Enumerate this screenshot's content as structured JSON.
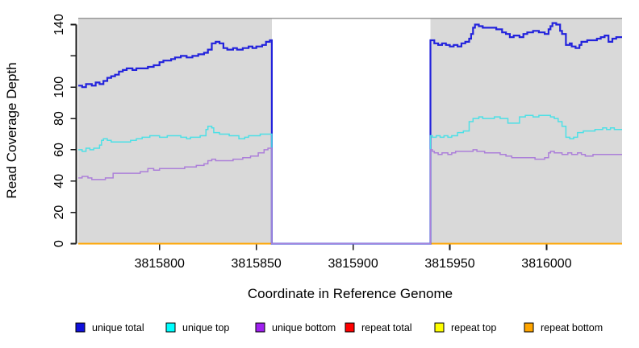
{
  "chart_data": {
    "type": "line",
    "title": "",
    "xlabel": "Coordinate in Reference Genome",
    "ylabel": "Read Coverage Depth",
    "xlim": [
      3815758,
      3816039
    ],
    "ylim": [
      0,
      144.65
    ],
    "grid": false,
    "legend_position": "bottom",
    "x_ticks": [
      {
        "v": 3815800,
        "label": "3815800"
      },
      {
        "v": 3815850,
        "label": "3815850"
      },
      {
        "v": 3815900,
        "label": "3815900"
      },
      {
        "v": 3815950,
        "label": "3815950"
      },
      {
        "v": 3816000,
        "label": "3816000"
      }
    ],
    "y_ticks": [
      {
        "v": 0,
        "label": "0"
      },
      {
        "v": 20,
        "label": "20"
      },
      {
        "v": 40,
        "label": "40"
      },
      {
        "v": 60,
        "label": "60"
      },
      {
        "v": 80,
        "label": "80"
      },
      {
        "v": 100,
        "label": "100"
      },
      {
        "v": 120,
        "label": ""
      },
      {
        "v": 140,
        "label": "140"
      }
    ],
    "panel_color": "#D9D9D9",
    "panel_top_line_color": "#999999",
    "gap_region": {
      "x0": 3815858,
      "x1": 3815940,
      "color": "#FFFFFF"
    },
    "shaded_regions": [
      {
        "x0": 3815758,
        "x1": 3815858
      },
      {
        "x0": 3815940,
        "x1": 3816039
      }
    ],
    "series": [
      {
        "name": "repeat total",
        "color": "#FF0000",
        "width": 1.5,
        "segments": [
          [
            [
              3815758,
              0
            ],
            [
              3815858,
              0
            ]
          ],
          [
            [
              3815940,
              0
            ],
            [
              3816039,
              0
            ]
          ]
        ]
      },
      {
        "name": "repeat top",
        "color": "#FFFF00",
        "width": 1.5,
        "segments": [
          [
            [
              3815758,
              0
            ],
            [
              3815858,
              0
            ]
          ],
          [
            [
              3815940,
              0
            ],
            [
              3816039,
              0
            ]
          ]
        ]
      },
      {
        "name": "repeat bottom",
        "color": "#FFA500",
        "width": 2,
        "segments": [
          [
            [
              3815758,
              0
            ],
            [
              3815858,
              0
            ]
          ],
          [
            [
              3815940,
              0
            ],
            [
              3816039,
              0
            ]
          ]
        ]
      },
      {
        "name": "unique total",
        "color": "#2222DC",
        "width": 2.2,
        "segments": [
          [
            [
              3815758,
              101
            ],
            [
              3815760,
              100
            ],
            [
              3815762,
              102
            ],
            [
              3815765,
              101
            ],
            [
              3815767,
              103
            ],
            [
              3815769,
              102
            ],
            [
              3815771,
              104
            ],
            [
              3815773,
              106
            ],
            [
              3815775,
              107
            ],
            [
              3815777,
              108
            ],
            [
              3815779,
              110
            ],
            [
              3815781,
              111
            ],
            [
              3815783,
              112
            ],
            [
              3815786,
              111
            ],
            [
              3815788,
              112
            ],
            [
              3815794,
              113
            ],
            [
              3815797,
              114
            ],
            [
              3815800,
              116
            ],
            [
              3815802,
              117
            ],
            [
              3815806,
              118
            ],
            [
              3815808,
              119
            ],
            [
              3815811,
              120
            ],
            [
              3815814,
              119
            ],
            [
              3815817,
              120
            ],
            [
              3815820,
              121
            ],
            [
              3815823,
              122
            ],
            [
              3815825,
              124
            ],
            [
              3815827,
              128
            ],
            [
              3815829,
              129
            ],
            [
              3815831,
              128
            ],
            [
              3815833,
              125
            ],
            [
              3815835,
              124
            ],
            [
              3815838,
              125
            ],
            [
              3815840,
              124
            ],
            [
              3815843,
              125
            ],
            [
              3815846,
              126
            ],
            [
              3815848,
              125
            ],
            [
              3815850,
              126
            ],
            [
              3815853,
              127
            ],
            [
              3815855,
              129
            ],
            [
              3815857,
              130
            ],
            [
              3815858,
              0
            ],
            [
              3815940,
              130
            ],
            [
              3815942,
              128
            ],
            [
              3815944,
              127
            ],
            [
              3815946,
              128
            ],
            [
              3815948,
              127
            ],
            [
              3815950,
              126
            ],
            [
              3815952,
              127
            ],
            [
              3815954,
              126
            ],
            [
              3815956,
              128
            ],
            [
              3815958,
              129
            ],
            [
              3815960,
              131
            ],
            [
              3815961,
              134
            ],
            [
              3815962,
              138
            ],
            [
              3815963,
              140
            ],
            [
              3815965,
              139
            ],
            [
              3815967,
              138
            ],
            [
              3815974,
              137
            ],
            [
              3815977,
              135
            ],
            [
              3815979,
              134
            ],
            [
              3815981,
              132
            ],
            [
              3815983,
              133
            ],
            [
              3815986,
              132
            ],
            [
              3815988,
              134
            ],
            [
              3815990,
              135
            ],
            [
              3815993,
              136
            ],
            [
              3815996,
              135
            ],
            [
              3815999,
              134
            ],
            [
              3816001,
              137
            ],
            [
              3816002,
              139
            ],
            [
              3816003,
              141
            ],
            [
              3816005,
              140
            ],
            [
              3816007,
              136
            ],
            [
              3816008,
              134
            ],
            [
              3816010,
              127
            ],
            [
              3816012,
              128
            ],
            [
              3816013,
              126
            ],
            [
              3816015,
              125
            ],
            [
              3816017,
              127
            ],
            [
              3816018,
              129
            ],
            [
              3816021,
              130
            ],
            [
              3816024,
              130
            ],
            [
              3816026,
              131
            ],
            [
              3816028,
              132
            ],
            [
              3816030,
              133
            ],
            [
              3816032,
              129
            ],
            [
              3816034,
              131
            ],
            [
              3816036,
              132
            ],
            [
              3816039,
              132
            ]
          ]
        ]
      },
      {
        "name": "unique top",
        "color": "#4DE0E6",
        "width": 1.5,
        "segments": [
          [
            [
              3815758,
              60
            ],
            [
              3815760,
              59
            ],
            [
              3815762,
              61
            ],
            [
              3815764,
              60
            ],
            [
              3815766,
              61
            ],
            [
              3815769,
              63
            ],
            [
              3815770,
              66
            ],
            [
              3815771,
              67
            ],
            [
              3815773,
              66
            ],
            [
              3815775,
              65
            ],
            [
              3815785,
              66
            ],
            [
              3815788,
              67
            ],
            [
              3815791,
              68
            ],
            [
              3815795,
              69
            ],
            [
              3815800,
              68
            ],
            [
              3815804,
              69
            ],
            [
              3815811,
              68
            ],
            [
              3815814,
              67
            ],
            [
              3815816,
              68
            ],
            [
              3815821,
              69
            ],
            [
              3815824,
              73
            ],
            [
              3815825,
              75
            ],
            [
              3815827,
              74
            ],
            [
              3815828,
              71
            ],
            [
              3815831,
              70
            ],
            [
              3815836,
              69
            ],
            [
              3815841,
              67
            ],
            [
              3815844,
              68
            ],
            [
              3815846,
              69
            ],
            [
              3815852,
              70
            ],
            [
              3815858,
              0
            ],
            [
              3815940,
              69
            ],
            [
              3815941,
              68
            ],
            [
              3815943,
              69
            ],
            [
              3815945,
              68
            ],
            [
              3815947,
              69
            ],
            [
              3815949,
              68
            ],
            [
              3815951,
              69
            ],
            [
              3815954,
              71
            ],
            [
              3815957,
              72
            ],
            [
              3815960,
              78
            ],
            [
              3815962,
              80
            ],
            [
              3815965,
              81
            ],
            [
              3815967,
              80
            ],
            [
              3815973,
              81
            ],
            [
              3815976,
              80
            ],
            [
              3815980,
              77
            ],
            [
              3815986,
              81
            ],
            [
              3815989,
              82
            ],
            [
              3815993,
              81
            ],
            [
              3815996,
              82
            ],
            [
              3816002,
              81
            ],
            [
              3816004,
              80
            ],
            [
              3816006,
              78
            ],
            [
              3816008,
              75
            ],
            [
              3816010,
              68
            ],
            [
              3816012,
              67
            ],
            [
              3816014,
              68
            ],
            [
              3816016,
              71
            ],
            [
              3816019,
              72
            ],
            [
              3816025,
              73
            ],
            [
              3816029,
              74
            ],
            [
              3816031,
              73
            ],
            [
              3816033,
              74
            ],
            [
              3816035,
              73
            ],
            [
              3816039,
              73
            ]
          ]
        ]
      },
      {
        "name": "unique bottom",
        "color": "#AC7FD9",
        "width": 1.5,
        "segments": [
          [
            [
              3815758,
              42
            ],
            [
              3815760,
              43
            ],
            [
              3815763,
              42
            ],
            [
              3815765,
              41
            ],
            [
              3815769,
              41
            ],
            [
              3815772,
              42
            ],
            [
              3815776,
              45
            ],
            [
              3815781,
              45
            ],
            [
              3815790,
              46
            ],
            [
              3815794,
              48
            ],
            [
              3815797,
              47
            ],
            [
              3815800,
              48
            ],
            [
              3815808,
              48
            ],
            [
              3815813,
              49
            ],
            [
              3815819,
              50
            ],
            [
              3815823,
              51
            ],
            [
              3815825,
              53
            ],
            [
              3815827,
              54
            ],
            [
              3815829,
              53
            ],
            [
              3815838,
              54
            ],
            [
              3815843,
              55
            ],
            [
              3815847,
              56
            ],
            [
              3815851,
              58
            ],
            [
              3815854,
              60
            ],
            [
              3815856,
              61
            ],
            [
              3815858,
              0
            ],
            [
              3815940,
              60
            ],
            [
              3815941,
              59
            ],
            [
              3815942,
              58
            ],
            [
              3815944,
              57
            ],
            [
              3815946,
              58
            ],
            [
              3815949,
              57
            ],
            [
              3815951,
              58
            ],
            [
              3815953,
              59
            ],
            [
              3815962,
              60
            ],
            [
              3815964,
              59
            ],
            [
              3815966,
              59
            ],
            [
              3815968,
              58
            ],
            [
              3815974,
              58
            ],
            [
              3815976,
              57
            ],
            [
              3815979,
              56
            ],
            [
              3815982,
              55
            ],
            [
              3815988,
              55
            ],
            [
              3815994,
              54
            ],
            [
              3815999,
              55
            ],
            [
              3816001,
              58
            ],
            [
              3816002,
              59
            ],
            [
              3816004,
              58
            ],
            [
              3816008,
              57
            ],
            [
              3816011,
              58
            ],
            [
              3816013,
              57
            ],
            [
              3816016,
              58
            ],
            [
              3816018,
              57
            ],
            [
              3816020,
              56
            ],
            [
              3816024,
              57
            ],
            [
              3816039,
              57
            ]
          ]
        ]
      }
    ],
    "legend": [
      {
        "label": "unique total",
        "color": "#1111DC"
      },
      {
        "label": "unique top",
        "color": "#00FFFF"
      },
      {
        "label": "unique bottom",
        "color": "#A020F0"
      },
      {
        "label": "repeat total",
        "color": "#FF0000"
      },
      {
        "label": "repeat top",
        "color": "#FFFF00"
      },
      {
        "label": "repeat bottom",
        "color": "#FFA500"
      }
    ]
  }
}
